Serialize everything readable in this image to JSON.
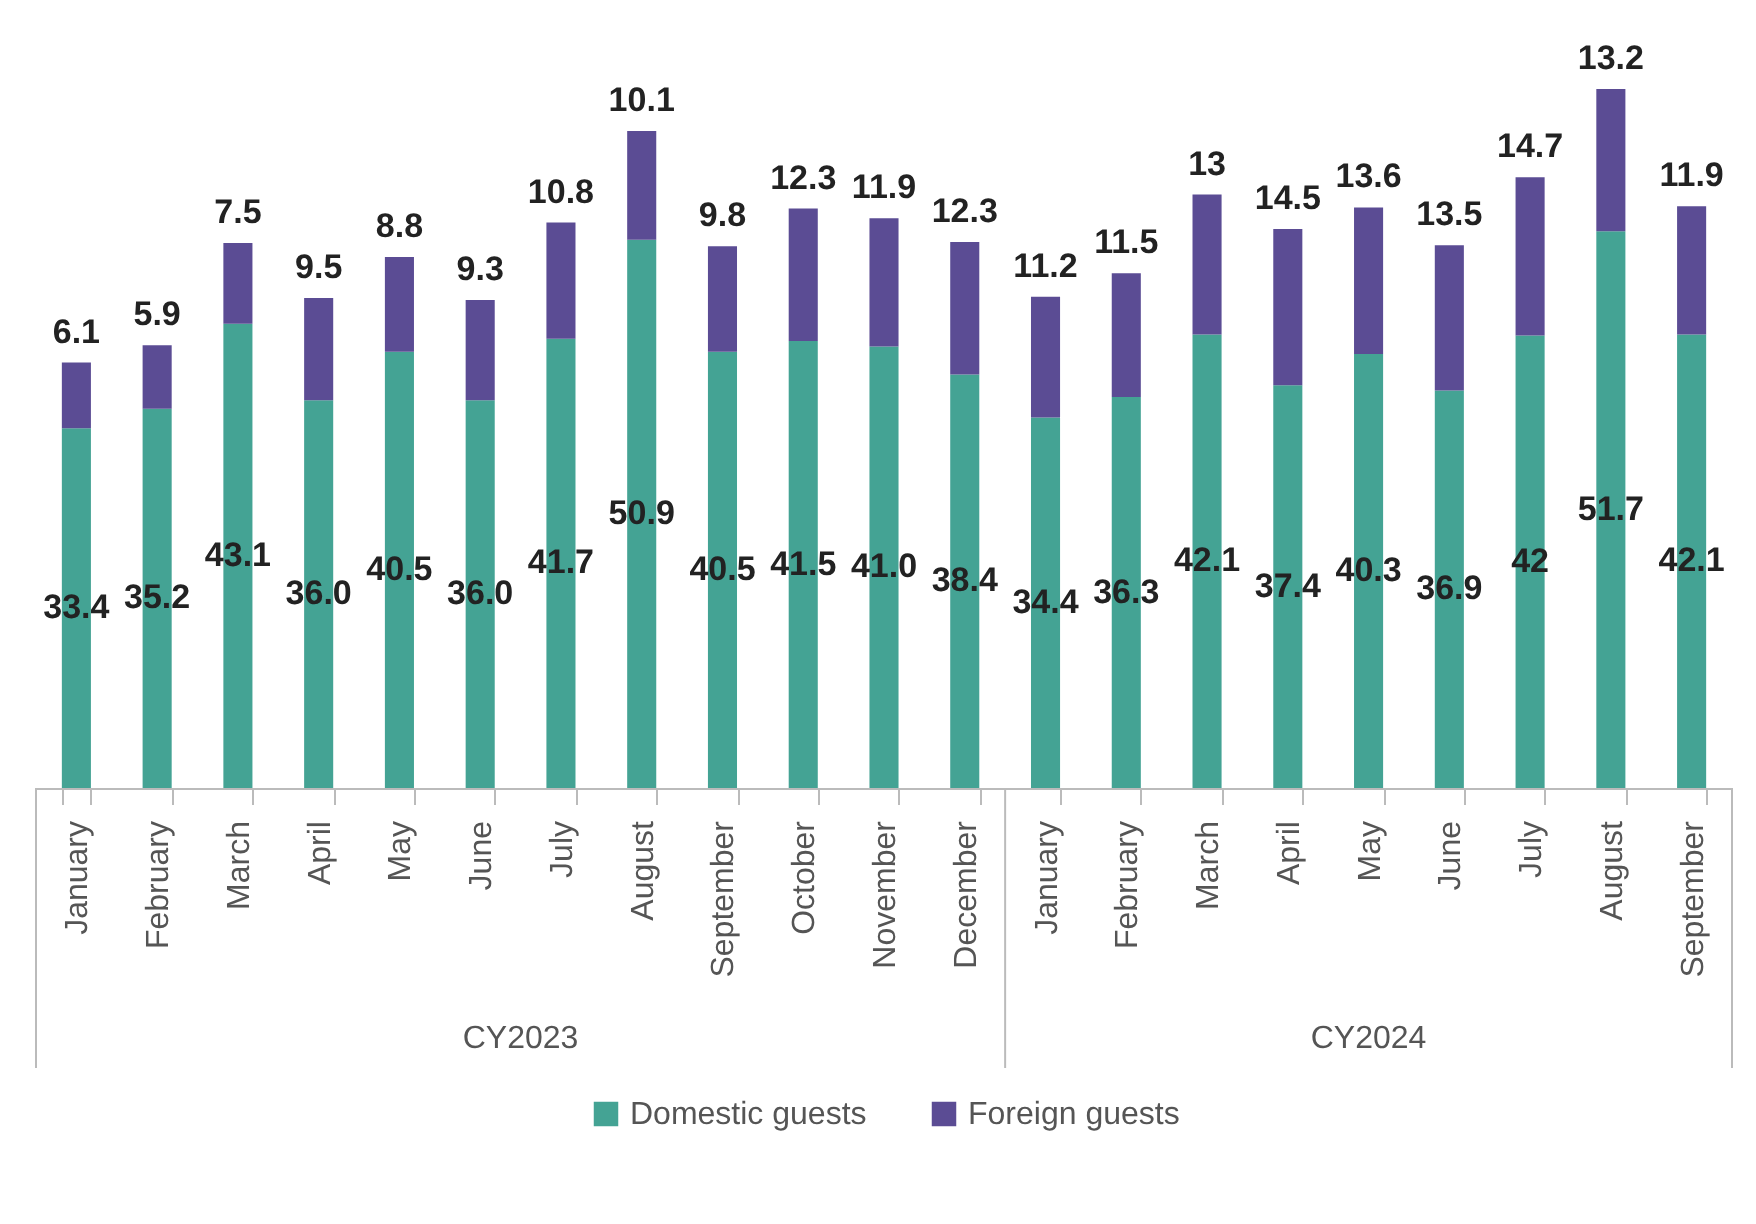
{
  "chart_data": {
    "type": "bar",
    "stacked": true,
    "legend": "bottom",
    "categories": [
      "January",
      "February",
      "March",
      "April",
      "May",
      "June",
      "July",
      "August",
      "September",
      "October",
      "November",
      "December",
      "January",
      "February",
      "March",
      "April",
      "May",
      "June",
      "July",
      "August",
      "September"
    ],
    "annotations": [
      "CY2023",
      "CY2024"
    ],
    "series": [
      {
        "name": "Domestic guests",
        "color": "#44a394",
        "values": [
          33.4,
          35.2,
          43.1,
          36.0,
          40.5,
          36.0,
          41.7,
          50.9,
          40.5,
          41.5,
          41.0,
          38.4,
          34.4,
          36.3,
          42.1,
          37.4,
          40.3,
          36.9,
          42,
          51.7,
          42.1
        ],
        "value_labels": [
          "33.4",
          "35.2",
          "43.1",
          "36.0",
          "40.5",
          "36.0",
          "41.7",
          "50.9",
          "40.5",
          "41.5",
          "41.0",
          "38.4",
          "34.4",
          "36.3",
          "42.1",
          "37.4",
          "40.3",
          "36.9",
          "42",
          "51.7",
          "42.1"
        ]
      },
      {
        "name": "Foreign guests",
        "color": "#5b4c94",
        "values": [
          6.1,
          5.9,
          7.5,
          9.5,
          8.8,
          9.3,
          10.8,
          10.1,
          9.8,
          12.3,
          11.9,
          12.3,
          11.2,
          11.5,
          13,
          14.5,
          13.6,
          13.5,
          14.7,
          13.2,
          11.9
        ],
        "value_labels": [
          "6.1",
          "5.9",
          "7.5",
          "9.5",
          "8.8",
          "9.3",
          "10.8",
          "10.1",
          "9.8",
          "12.3",
          "11.9",
          "12.3",
          "11.2",
          "11.5",
          "13",
          "14.5",
          "13.6",
          "13.5",
          "14.7",
          "13.2",
          "11.9"
        ]
      }
    ]
  }
}
